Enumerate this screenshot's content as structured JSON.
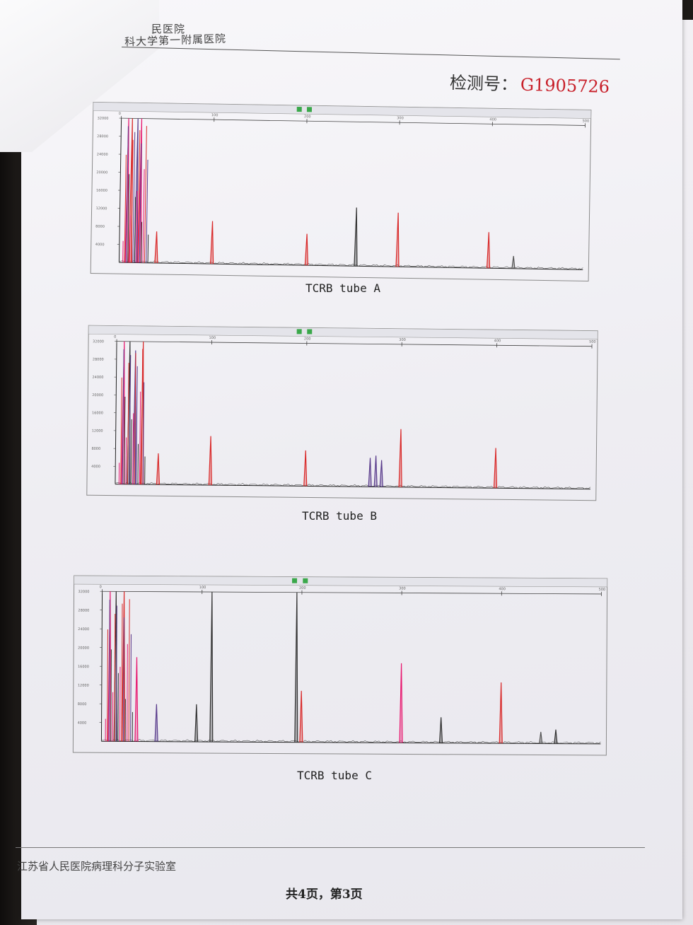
{
  "header": {
    "hospital_line1": "民医院",
    "hospital_line2": "科大学第一附属医院",
    "detection_label": "检测号：",
    "detection_number": "G1905726"
  },
  "charts": [
    {
      "id": "a",
      "caption": "TCRB tube A",
      "chart_data": {
        "type": "line",
        "title": "TCRB tube A",
        "x_ticks": [
          0,
          100,
          200,
          300,
          400,
          500
        ],
        "xlim": [
          0,
          500
        ],
        "ylim": [
          0,
          32000
        ],
        "grid": false,
        "peaks": [
          {
            "x": 8,
            "y": 32000,
            "color": "#e8186f"
          },
          {
            "x": 12,
            "y": 32000,
            "color": "#d92a2a"
          },
          {
            "x": 18,
            "y": 32000,
            "color": "#5a3c8c"
          },
          {
            "x": 22,
            "y": 32000,
            "color": "#e8186f"
          },
          {
            "x": 40,
            "y": 7000,
            "color": "#d92a2a"
          },
          {
            "x": 100,
            "y": 9500,
            "color": "#d92a2a"
          },
          {
            "x": 202,
            "y": 7000,
            "color": "#d92a2a"
          },
          {
            "x": 255,
            "y": 13000,
            "color": "#333333"
          },
          {
            "x": 300,
            "y": 12000,
            "color": "#d92a2a"
          },
          {
            "x": 398,
            "y": 8000,
            "color": "#d92a2a"
          },
          {
            "x": 425,
            "y": 2800,
            "color": "#555555"
          }
        ]
      }
    },
    {
      "id": "b",
      "caption": "TCRB tube B",
      "chart_data": {
        "type": "line",
        "title": "TCRB tube B",
        "x_ticks": [
          0,
          100,
          200,
          300,
          400,
          500
        ],
        "xlim": [
          0,
          500
        ],
        "ylim": [
          0,
          32000
        ],
        "grid": false,
        "peaks": [
          {
            "x": 8,
            "y": 32000,
            "color": "#e8186f"
          },
          {
            "x": 14,
            "y": 32000,
            "color": "#333333"
          },
          {
            "x": 20,
            "y": 30000,
            "color": "#5a3c8c"
          },
          {
            "x": 28,
            "y": 32000,
            "color": "#d92a2a"
          },
          {
            "x": 45,
            "y": 7000,
            "color": "#d92a2a"
          },
          {
            "x": 100,
            "y": 11000,
            "color": "#d92a2a"
          },
          {
            "x": 200,
            "y": 8000,
            "color": "#d92a2a"
          },
          {
            "x": 268,
            "y": 6500,
            "color": "#5a3c8c"
          },
          {
            "x": 274,
            "y": 7000,
            "color": "#5a3c8c"
          },
          {
            "x": 280,
            "y": 6000,
            "color": "#5a3c8c"
          },
          {
            "x": 300,
            "y": 13000,
            "color": "#d92a2a"
          },
          {
            "x": 400,
            "y": 9000,
            "color": "#d92a2a"
          }
        ]
      }
    },
    {
      "id": "c",
      "caption": "TCRB tube C",
      "chart_data": {
        "type": "line",
        "title": "TCRB tube C",
        "x_ticks": [
          0,
          100,
          200,
          300,
          400,
          500
        ],
        "xlim": [
          0,
          500
        ],
        "ylim": [
          0,
          32000
        ],
        "grid": false,
        "peaks": [
          {
            "x": 8,
            "y": 32000,
            "color": "#e8186f"
          },
          {
            "x": 14,
            "y": 32000,
            "color": "#333333"
          },
          {
            "x": 22,
            "y": 32000,
            "color": "#d92a2a"
          },
          {
            "x": 35,
            "y": 18000,
            "color": "#e8186f"
          },
          {
            "x": 55,
            "y": 8000,
            "color": "#5a3c8c"
          },
          {
            "x": 95,
            "y": 8000,
            "color": "#333333"
          },
          {
            "x": 110,
            "y": 32000,
            "color": "#333333"
          },
          {
            "x": 195,
            "y": 32000,
            "color": "#333333"
          },
          {
            "x": 200,
            "y": 11000,
            "color": "#d92a2a"
          },
          {
            "x": 300,
            "y": 17000,
            "color": "#e8186f"
          },
          {
            "x": 340,
            "y": 5500,
            "color": "#333333"
          },
          {
            "x": 400,
            "y": 13000,
            "color": "#d92a2a"
          },
          {
            "x": 440,
            "y": 2500,
            "color": "#555555"
          },
          {
            "x": 455,
            "y": 3000,
            "color": "#333333"
          }
        ]
      }
    }
  ],
  "footer": {
    "lab_name": "江苏省人民医院病理科分子实验室",
    "pagination": "共4页，第3页"
  },
  "colors": {
    "detection_number": "#c8202a",
    "peak_red": "#d92a2a",
    "peak_magenta": "#e8186f",
    "peak_blue": "#5a3c8c",
    "peak_black": "#333333"
  }
}
